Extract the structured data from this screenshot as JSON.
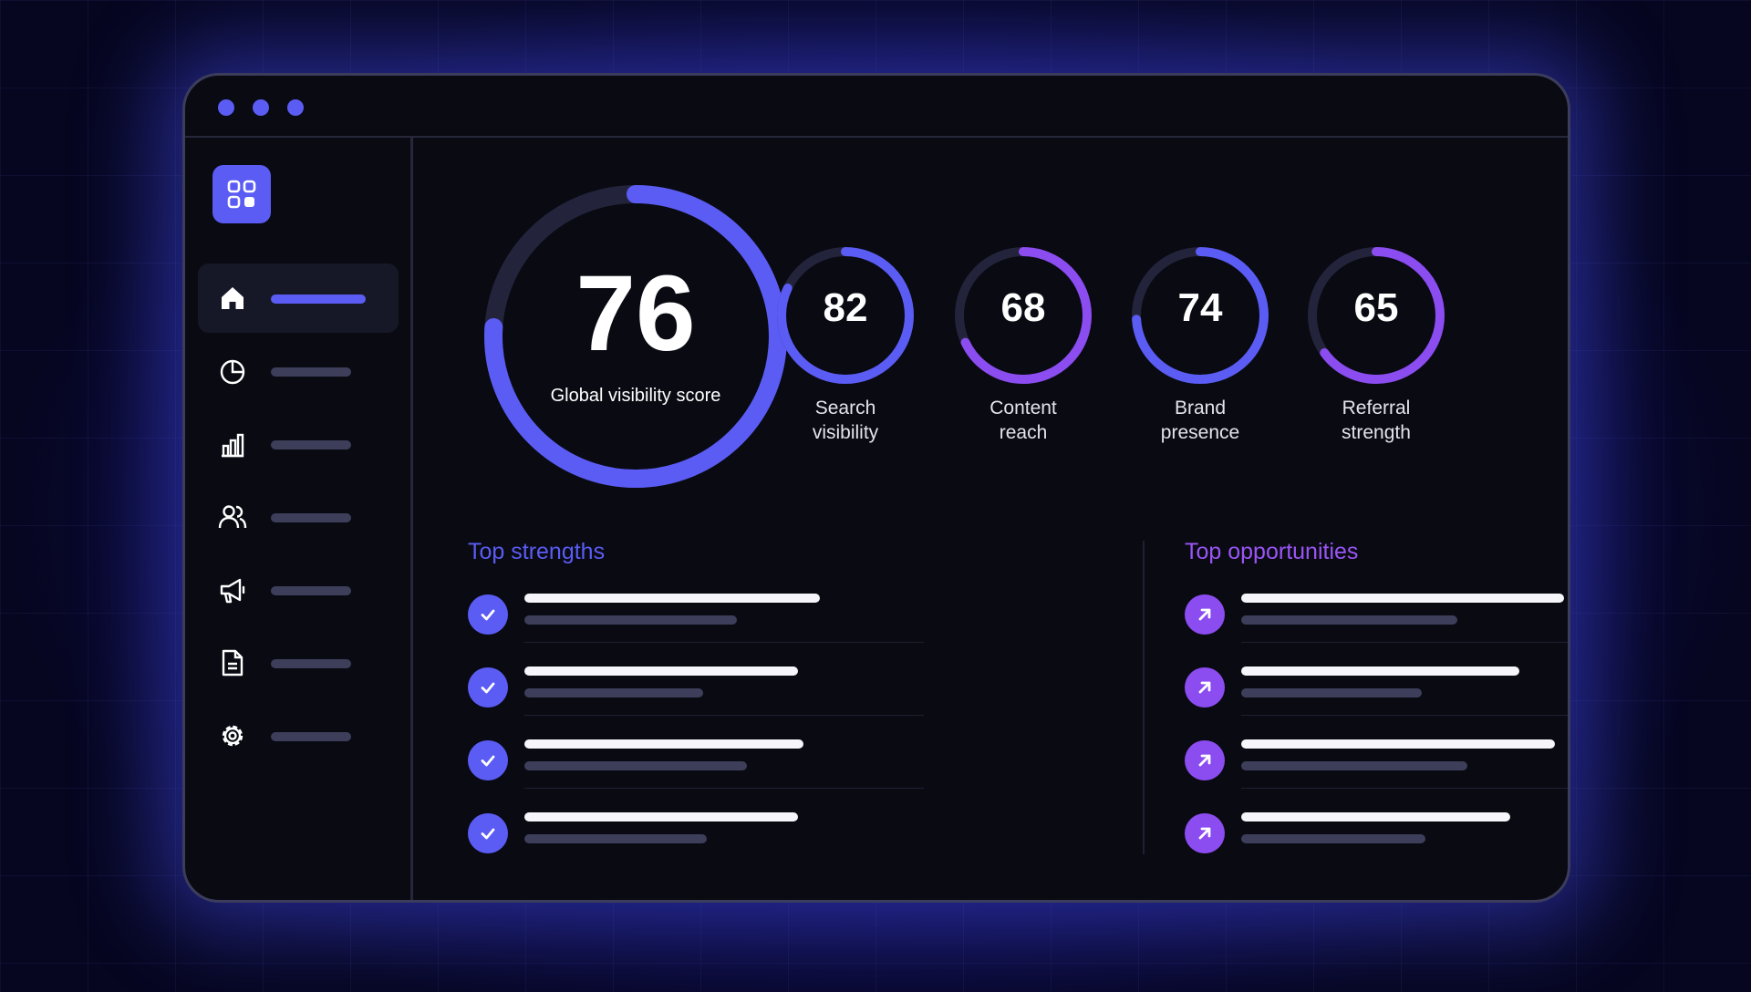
{
  "window": {
    "dot_color": "#5b5cf4",
    "accent_blue": "#5b5cf4",
    "accent_purple": "#8b4cf0"
  },
  "sidebar": {
    "logo_icon": "grid-icon",
    "items": [
      {
        "icon": "home-icon",
        "active": true
      },
      {
        "icon": "pie-chart-icon",
        "active": false
      },
      {
        "icon": "bar-chart-icon",
        "active": false
      },
      {
        "icon": "users-icon",
        "active": false
      },
      {
        "icon": "megaphone-icon",
        "active": false
      },
      {
        "icon": "document-icon",
        "active": false
      },
      {
        "icon": "settings-icon",
        "active": false
      }
    ]
  },
  "global_score": {
    "value": "76",
    "label": "Global visibility score",
    "fraction": 0.76
  },
  "metrics": [
    {
      "value": "82",
      "label_line1": "Search",
      "label_line2": "visibility",
      "fraction": 0.82,
      "color": "blue"
    },
    {
      "value": "68",
      "label_line1": "Content",
      "label_line2": "reach",
      "fraction": 0.68,
      "color": "purple"
    },
    {
      "value": "74",
      "label_line1": "Brand",
      "label_line2": "presence",
      "fraction": 0.74,
      "color": "blue"
    },
    {
      "value": "65",
      "label_line1": "Referral",
      "label_line2": "strength",
      "fraction": 0.65,
      "color": "purple"
    }
  ],
  "strengths": {
    "title": "Top strengths",
    "title_color": "#5b5cf4",
    "icon": "check-icon",
    "rows": 4
  },
  "opportunities": {
    "title": "Top opportunities",
    "title_color": "#9a55f5",
    "icon": "arrow-up-right-icon",
    "rows": 4
  }
}
